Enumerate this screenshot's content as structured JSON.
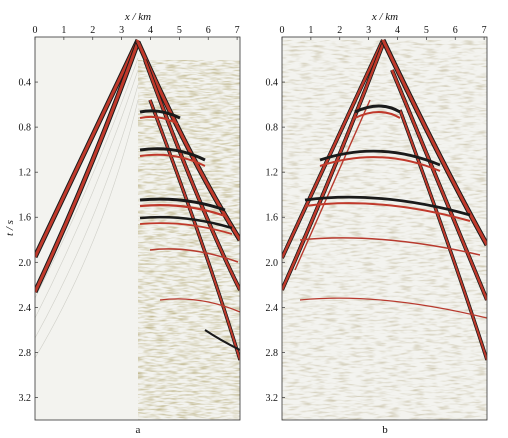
{
  "figure": {
    "panels": [
      {
        "id": "a",
        "caption": "a",
        "x_label": "x / km",
        "y_label": "t / s",
        "x_ticks": [
          "0",
          "1",
          "2",
          "3",
          "4",
          "5",
          "6",
          "7"
        ],
        "y_ticks": [
          "0.4",
          "0.8",
          "1.2",
          "1.6",
          "2.0",
          "2.4",
          "2.8",
          "3.2"
        ]
      },
      {
        "id": "b",
        "caption": "b",
        "x_label": "x / km",
        "y_label": "",
        "x_ticks": [
          "0",
          "1",
          "2",
          "3",
          "4",
          "5",
          "6",
          "7"
        ],
        "y_ticks": [
          "0.4",
          "0.8",
          "1.2",
          "1.6",
          "2.0",
          "2.4",
          "2.8",
          "3.2"
        ]
      }
    ],
    "colors": {
      "wiggle_red": "#c0392b",
      "wiggle_dark": "#1a1a1a",
      "background": "#f3f3ef",
      "noise_yellow": "#e8d47a",
      "noise_blue": "#8aa0c8"
    }
  }
}
